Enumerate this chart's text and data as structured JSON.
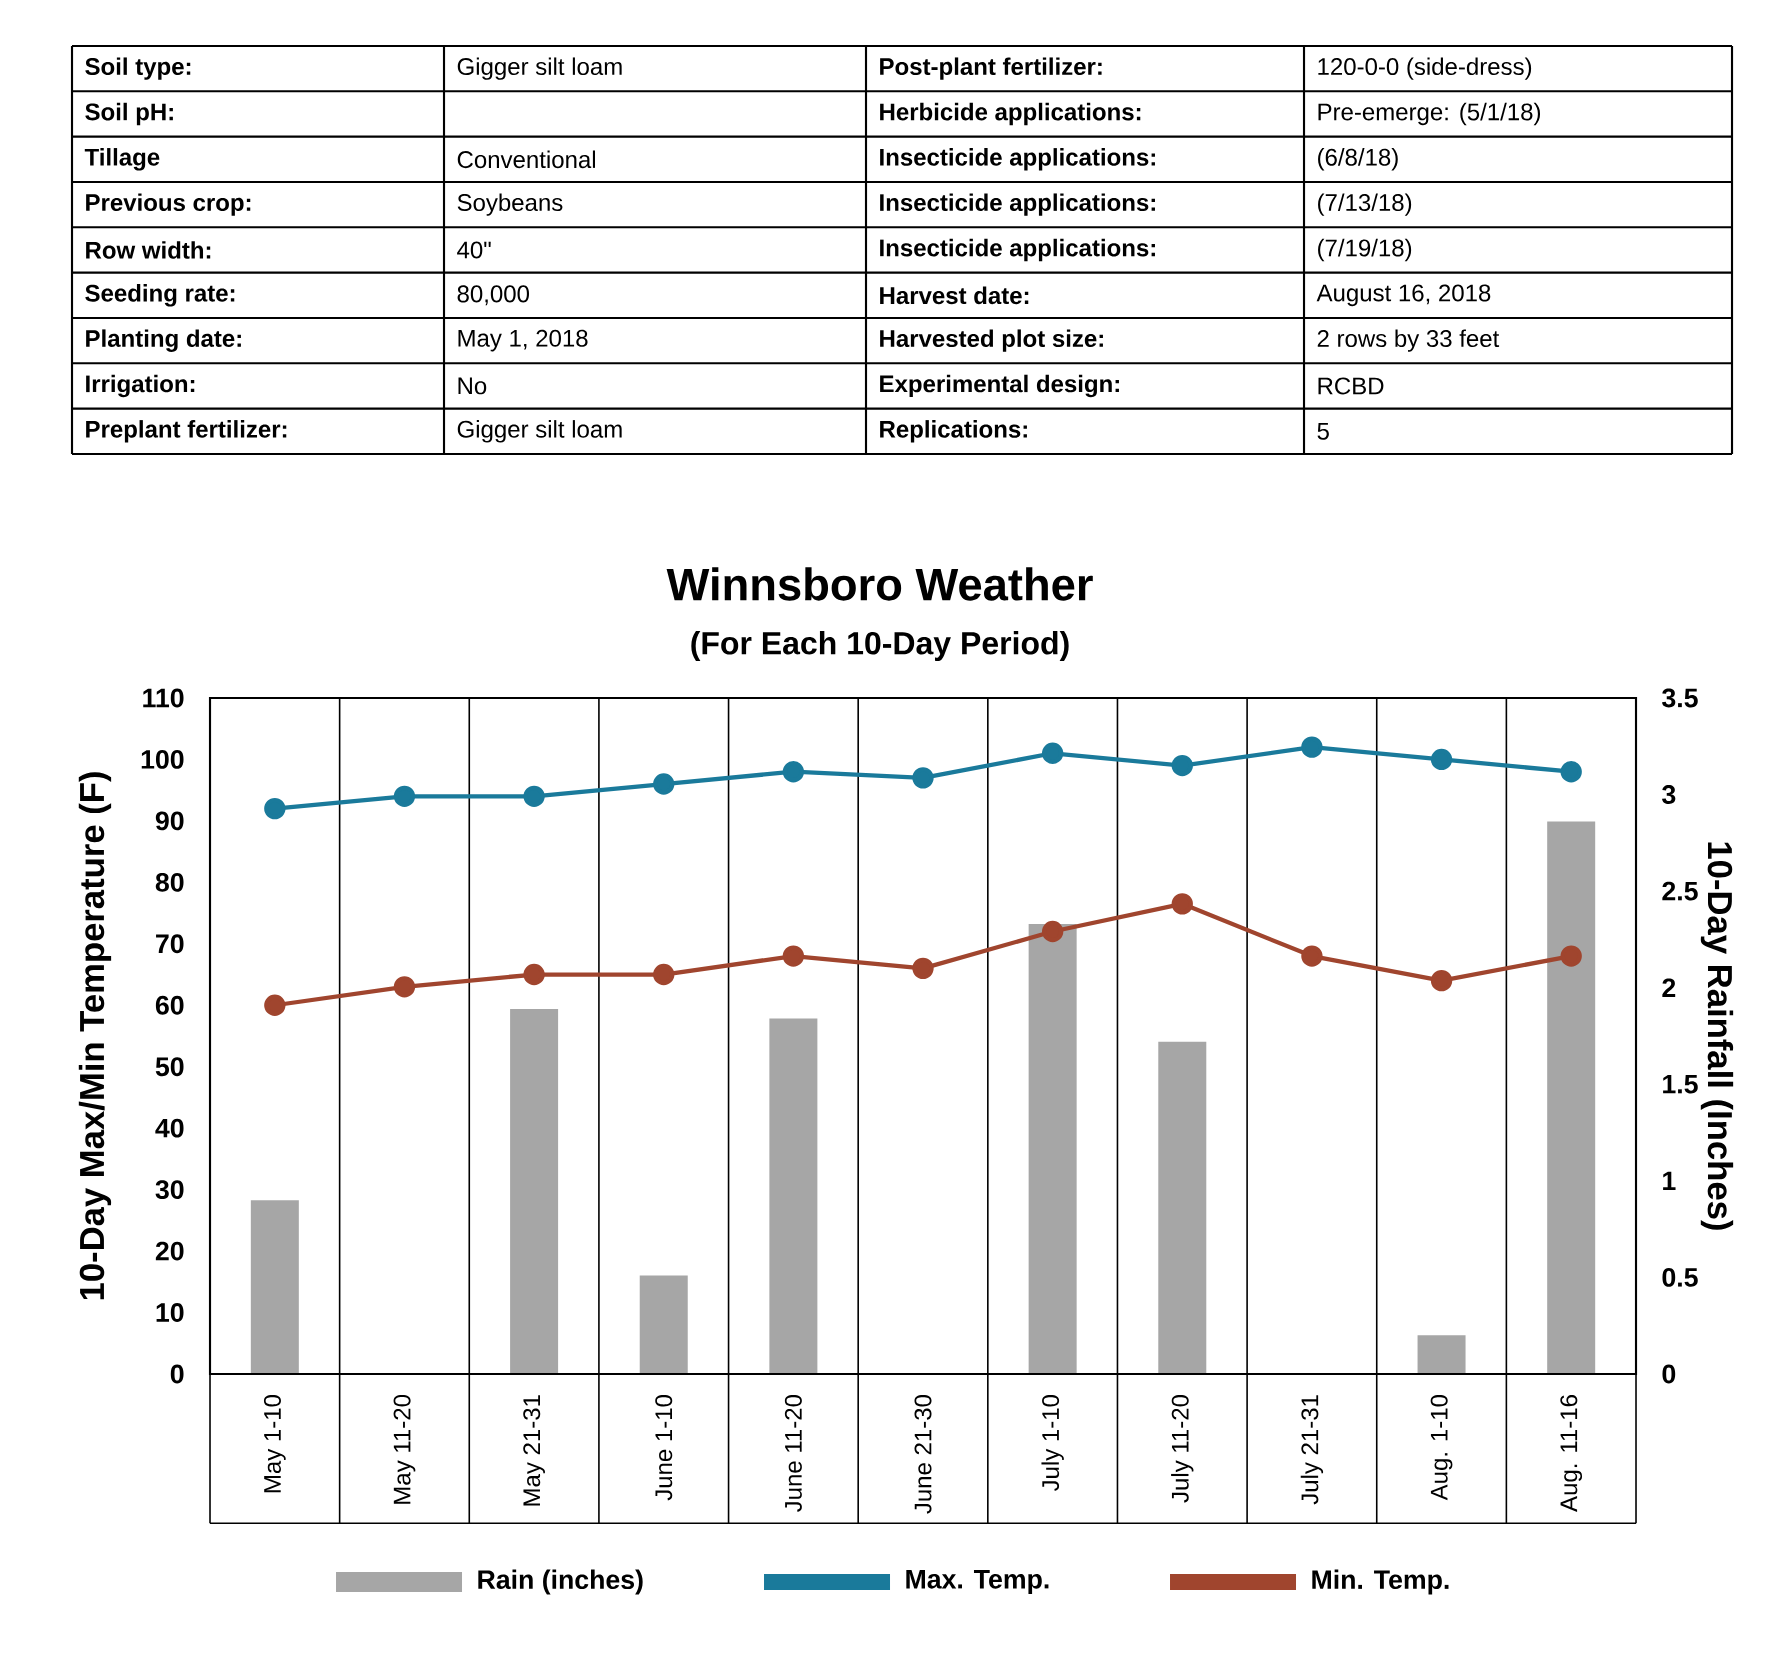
{
  "chart_data": [
    {
      "type": "other",
      "annotations": [
        "Soil type:",
        "Gigger silt loam",
        "Post-plant fertilizer:",
        "120-0-0 (side-dress)",
        "Soil pH:",
        null,
        "Herbicide applications:",
        "Pre-emerge: (5/1/18)",
        "Tillage",
        "Conventional",
        "Insecticide applications:",
        "(6/8/18)",
        "Previous crop:",
        "Soybeans",
        "Insecticide applications:",
        "(7/13/18)",
        "Row width:",
        "40\"",
        "Insecticide applications:",
        "(7/19/18)",
        "Seeding rate:",
        "80,000",
        "Harvest date:",
        "August 16, 2018",
        "Planting date:",
        "May 1, 2018",
        "Harvested plot size:",
        "2 rows by 33 feet",
        "Irrigation:",
        "No",
        "Experimental design:",
        "RCBD",
        "Preplant fertilizer:",
        "Gigger silt loam",
        "Replications:",
        "5"
      ]
    },
    {
      "type": "bar",
      "title": "Winnsboro Weather",
      "subtitle": "(For Each 10-Day Period)",
      "ylabel": "10-Day Max/Min Temperature (F)",
      "y2label": "10-Day Rainfall (Inches)",
      "categories": [
        "May 1-10",
        "May 11-20",
        "May 21-31",
        "June 1-10",
        "June 11-20",
        "June 21-30",
        "July 1-10",
        "July 11-20",
        "July 21-31",
        "Aug. 1-10",
        "Aug. 11-16"
      ],
      "series": [
        {
          "name": "Rain (inches)",
          "type": "bar",
          "axis": "y2",
          "color": "#a6a6a6",
          "values": [
            0.9,
            0,
            1.89,
            0.51,
            1.84,
            0,
            2.33,
            1.72,
            0,
            0.2,
            2.86
          ]
        },
        {
          "name": "Max. Temp.",
          "type": "line",
          "color": "#1a7a9b",
          "values": [
            92,
            94,
            94,
            96,
            98,
            97,
            101,
            99,
            102,
            100,
            98
          ]
        },
        {
          "name": "Min. Temp.",
          "type": "line",
          "color": "#a0452e",
          "values": [
            60,
            63,
            65,
            65,
            68,
            66,
            72,
            76.5,
            68,
            64,
            68
          ]
        }
      ],
      "ylim": [
        0,
        110
      ],
      "yticks": [
        0,
        10,
        20,
        30,
        40,
        50,
        60,
        70,
        80,
        90,
        100,
        110
      ],
      "y2lim": [
        0,
        3.5
      ],
      "y2ticks": [
        0,
        0.5,
        1,
        1.5,
        2,
        2.5,
        3,
        3.5
      ],
      "grid": "x",
      "legend": "bottom",
      "marker": "circle"
    }
  ]
}
